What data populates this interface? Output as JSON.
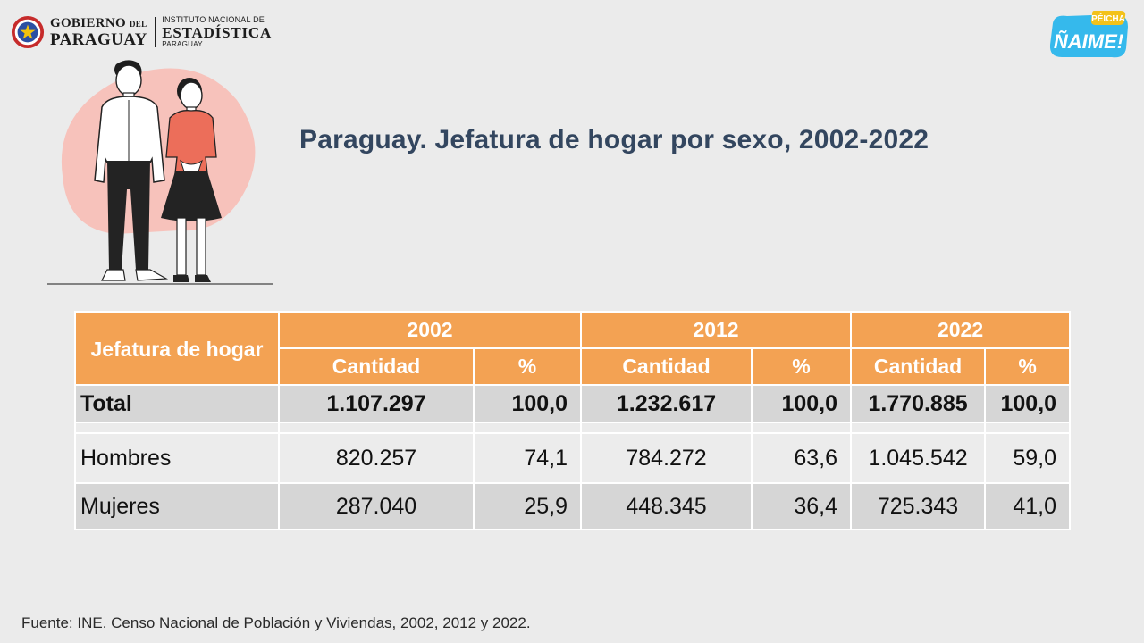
{
  "header": {
    "gov_line1": "GOBIERNO",
    "gov_line1_small": "DEL",
    "gov_line2": "PARAGUAY",
    "ine_line1": "INSTITUTO NACIONAL DE",
    "ine_line2": "ESTADÍSTICA",
    "ine_line3": "PARAGUAY",
    "campaign_top": "PÉICHA",
    "campaign_main": "ÑAIME!"
  },
  "title": "Paraguay. Jefatura de hogar por sexo, 2002-2022",
  "source": "Fuente: INE. Censo Nacional de Población y Viviendas, 2002, 2012 y 2022.",
  "colors": {
    "header_orange": "#f3a253",
    "title_blue": "#33465f",
    "row_gray": "#d6d6d6",
    "row_light": "#ececec"
  },
  "chart_data": {
    "type": "table",
    "row_header_label": "Jefatura de hogar",
    "years": [
      "2002",
      "2012",
      "2022"
    ],
    "subcolumns": [
      "Cantidad",
      "%"
    ],
    "rows": [
      {
        "label": "Total",
        "values": [
          "1.107.297",
          "100,0",
          "1.232.617",
          "100,0",
          "1.770.885",
          "100,0"
        ]
      },
      {
        "label": "Hombres",
        "values": [
          "820.257",
          "74,1",
          "784.272",
          "63,6",
          "1.045.542",
          "59,0"
        ]
      },
      {
        "label": "Mujeres",
        "values": [
          "287.040",
          "25,9",
          "448.345",
          "36,4",
          "725.343",
          "41,0"
        ]
      }
    ]
  }
}
